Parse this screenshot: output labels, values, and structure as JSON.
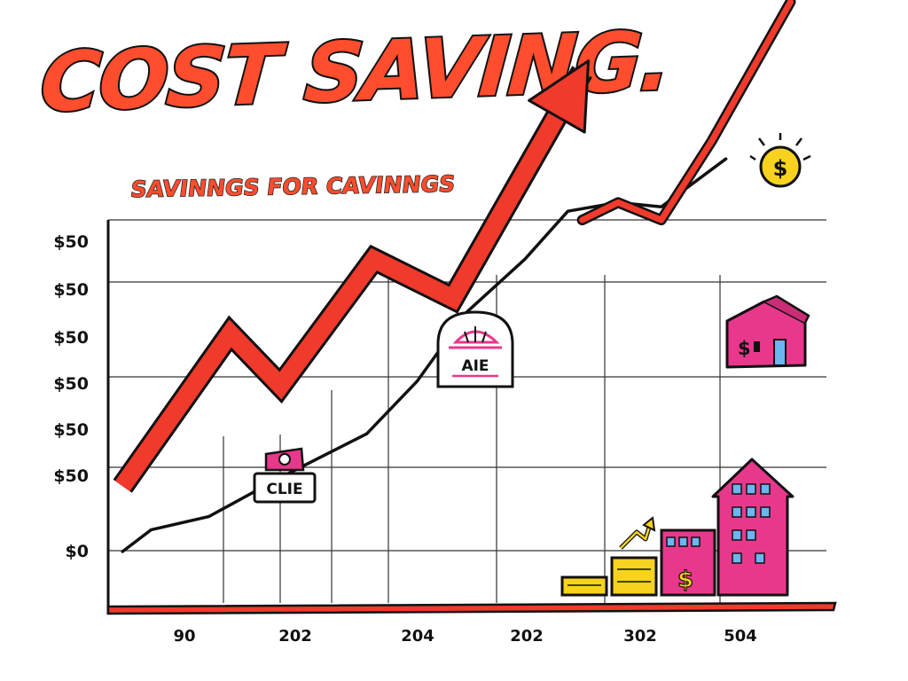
{
  "header": {
    "title": "COST SAVING.",
    "subtitle": "SAVINNGS FOR CAVINNGS"
  },
  "colors": {
    "arrow": "#f03a2c",
    "title": "#ff4d2e",
    "house": "#e8388c",
    "coin": "#f7d21e",
    "line": "#111111"
  },
  "signs": {
    "sign_1": "CLIE",
    "sign_2": "AIE"
  },
  "chart_data": {
    "type": "line",
    "title": "COST SAVING.",
    "subtitle": "SAVINNGS FOR CAVINNGS",
    "y_tick_labels": [
      "$50",
      "$50",
      "$50",
      "$50",
      "$50",
      "$50",
      "$0"
    ],
    "x_tick_labels": [
      "90",
      "202",
      "204",
      "202",
      "302",
      "504"
    ],
    "ylim": [
      0,
      100
    ],
    "xlim": [
      0,
      100
    ],
    "grid": true,
    "legend": "none",
    "series": [
      {
        "style": "red-arrow",
        "x": [
          2,
          17,
          24,
          37,
          48,
          66
        ],
        "y": [
          15,
          50,
          38,
          67,
          58,
          110
        ]
      },
      {
        "style": "black-line",
        "x": [
          2,
          6,
          14,
          24,
          36,
          43,
          50,
          58,
          64,
          71,
          77,
          86
        ],
        "y": [
          0,
          5,
          8,
          17,
          27,
          39,
          55,
          67,
          78,
          80,
          79,
          90
        ]
      },
      {
        "style": "red-line",
        "x": [
          66,
          71,
          77,
          84,
          95
        ],
        "y": [
          76,
          80,
          76,
          94,
          126
        ]
      }
    ]
  }
}
